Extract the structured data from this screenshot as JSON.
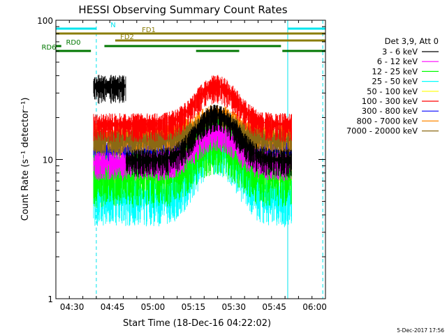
{
  "chart_data": {
    "type": "line",
    "title": "HESSI Observing Summary Count Rates",
    "xlabel": "Start Time (18-Dec-16 04:22:02)",
    "ylabel": "Count Rate (s⁻¹ detector⁻¹)",
    "yscale": "log",
    "ylim": [
      1,
      100
    ],
    "xlim_minutes": [
      264,
      364
    ],
    "x_ticks": [
      {
        "m": 270,
        "label": "04:30"
      },
      {
        "m": 285,
        "label": "04:45"
      },
      {
        "m": 300,
        "label": "05:00"
      },
      {
        "m": 315,
        "label": "05:15"
      },
      {
        "m": 330,
        "label": "05:30"
      },
      {
        "m": 345,
        "label": "05:45"
      },
      {
        "m": 360,
        "label": "06:00"
      }
    ],
    "y_ticks": [
      {
        "v": 1,
        "label": "1"
      },
      {
        "v": 10,
        "label": "10"
      },
      {
        "v": 100,
        "label": "100"
      }
    ],
    "legend_title": "Det 3,9, Att 0",
    "legend_position": "right",
    "timestamp": "5-Dec-2017 17:56",
    "grid": false,
    "data_start_m": 278,
    "data_end_m": 351.5,
    "flare_peak_m": 323.5,
    "series": [
      {
        "name": "3 - 6 keV",
        "color": "#000000",
        "base": 10,
        "peak": 21,
        "pre": 34
      },
      {
        "name": "6 - 12 keV",
        "color": "#ff00ff",
        "base": 9.5,
        "peak": 15.5
      },
      {
        "name": "12 - 25 keV",
        "color": "#00ff00",
        "base": 8,
        "peak": 14
      },
      {
        "name": "25 - 50 keV",
        "color": "#00ffff",
        "base": 5.5,
        "peak": 13
      },
      {
        "name": "50 - 100 keV",
        "color": "#ffff00",
        "base": 9,
        "peak": 15
      },
      {
        "name": "100 - 300 keV",
        "color": "#ff0000",
        "base": 18,
        "peak": 34
      },
      {
        "name": "300 - 800 keV",
        "color": "#0000ff",
        "base": 11.5,
        "peak": 16
      },
      {
        "name": "800 - 7000 keV",
        "color": "#ff8800",
        "base": 15,
        "peak": 21
      },
      {
        "name": "7000 - 20000 keV",
        "color": "#8b6914",
        "base": 14,
        "peak": 19
      }
    ],
    "flags": [
      {
        "label": "N",
        "color": "#00e5ee",
        "segments": [
          [
            264,
            279
          ],
          [
            350,
            364
          ]
        ],
        "level_px": 41
      },
      {
        "label": "FD1",
        "color": "#8b7d0a",
        "segments": [
          [
            264,
            364
          ]
        ],
        "level_px": 48
      },
      {
        "label": "FD2",
        "color": "#8b7d0a",
        "segments": [
          [
            286,
            364
          ]
        ],
        "level_px": 58
      },
      {
        "label": "RD0",
        "color": "#007700",
        "segments": [
          [
            264,
            266
          ],
          [
            282,
            347.5
          ]
        ],
        "level_px": 66
      },
      {
        "label": "RD6",
        "color": "#007700",
        "segments": [
          [
            264,
            277
          ],
          [
            316,
            332
          ],
          [
            348,
            364
          ]
        ],
        "level_px": 73
      }
    ],
    "vlines": [
      {
        "m": 264,
        "color": "#00e5ee",
        "dash": false
      },
      {
        "m": 279,
        "color": "#00e5ee",
        "dash": true
      },
      {
        "m": 350,
        "color": "#00e5ee",
        "dash": false
      },
      {
        "m": 363,
        "color": "#00e5ee",
        "dash": true
      }
    ]
  }
}
